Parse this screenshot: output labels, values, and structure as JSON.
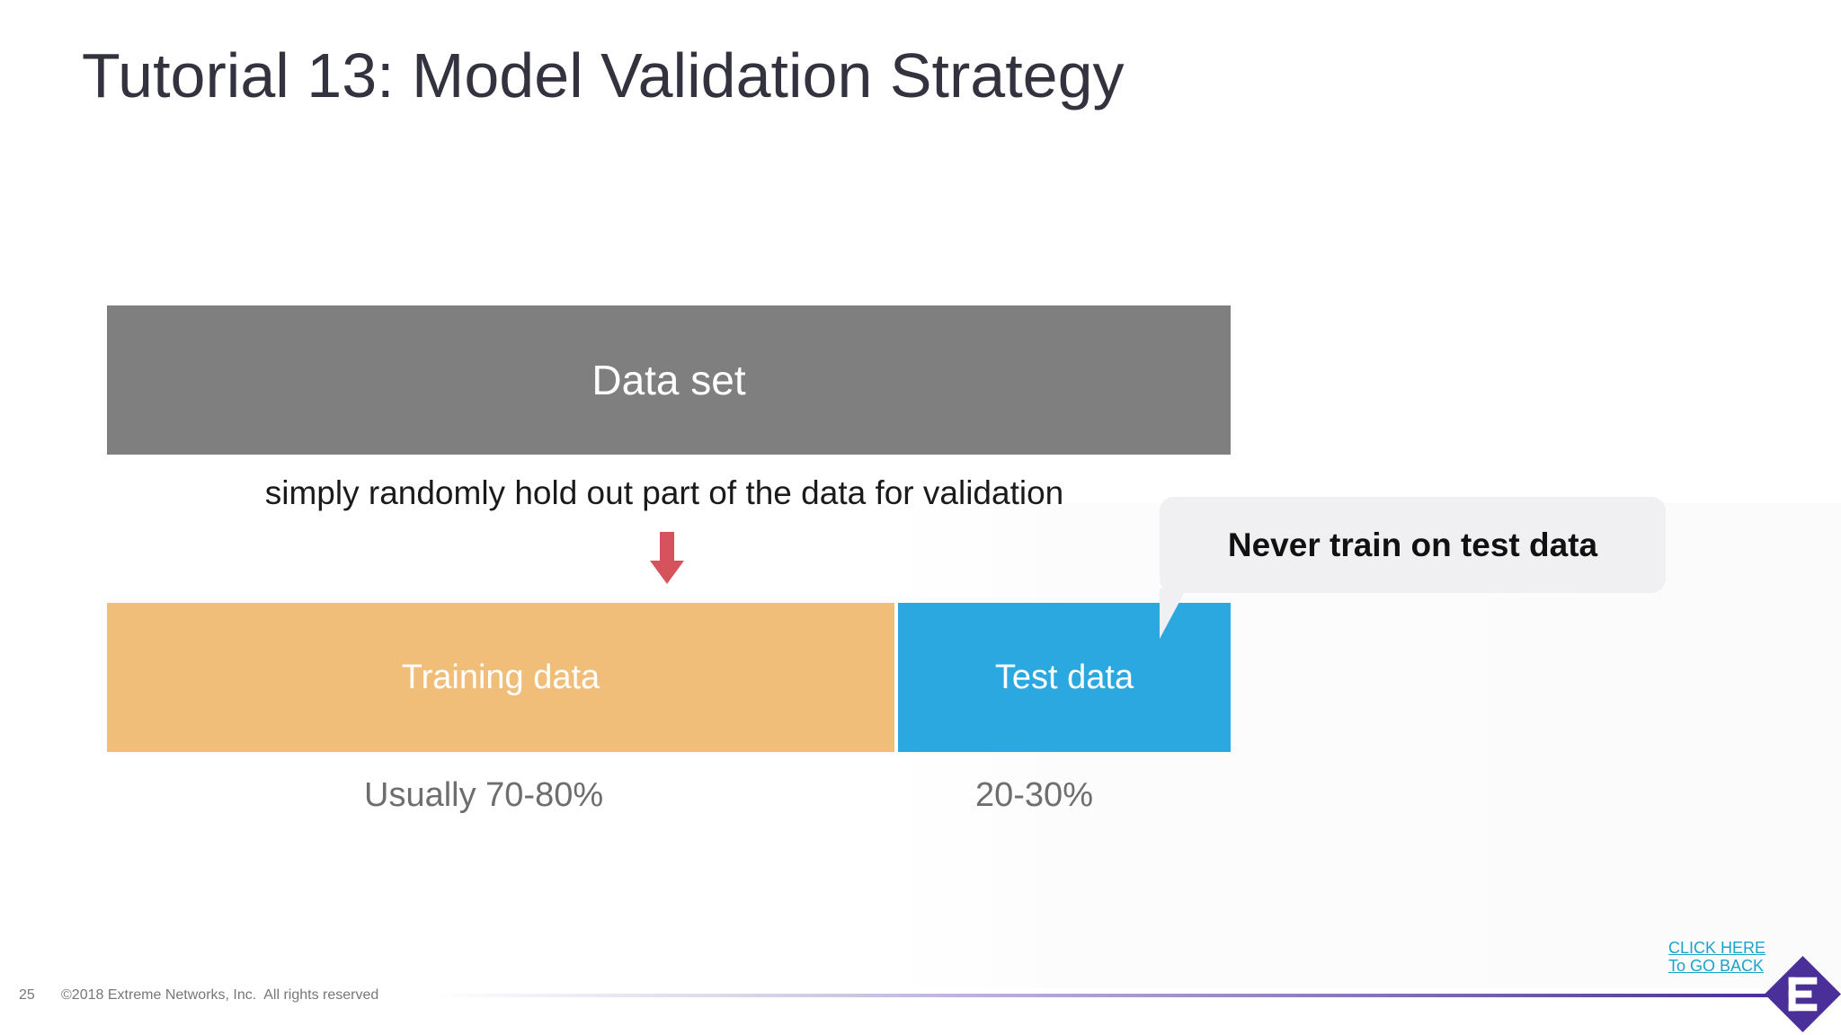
{
  "slide": {
    "title": "Tutorial 13: Model Validation Strategy",
    "page_number": "25",
    "copyright": "©2018 Extreme Networks, Inc.  All rights reserved"
  },
  "diagram": {
    "dataset_label": "Data set",
    "holdout_text": "simply randomly hold out part of the data for validation",
    "training_label": "Training data",
    "test_label": "Test data",
    "training_pct": "Usually 70-80%",
    "test_pct": "20-30%",
    "callout_text": "Never train on test data"
  },
  "navigation": {
    "go_back_line1": "CLICK HERE",
    "go_back_line2": "To GO BACK"
  },
  "colors": {
    "dataset": "#7f7f80",
    "training": "#f0be78",
    "test": "#2ca8e1",
    "arrow": "#d6535e",
    "brand": "#4a2f98",
    "link": "#1aa3c8"
  },
  "icons": {
    "arrow": "down-arrow-icon",
    "logo": "extreme-networks-logo"
  }
}
